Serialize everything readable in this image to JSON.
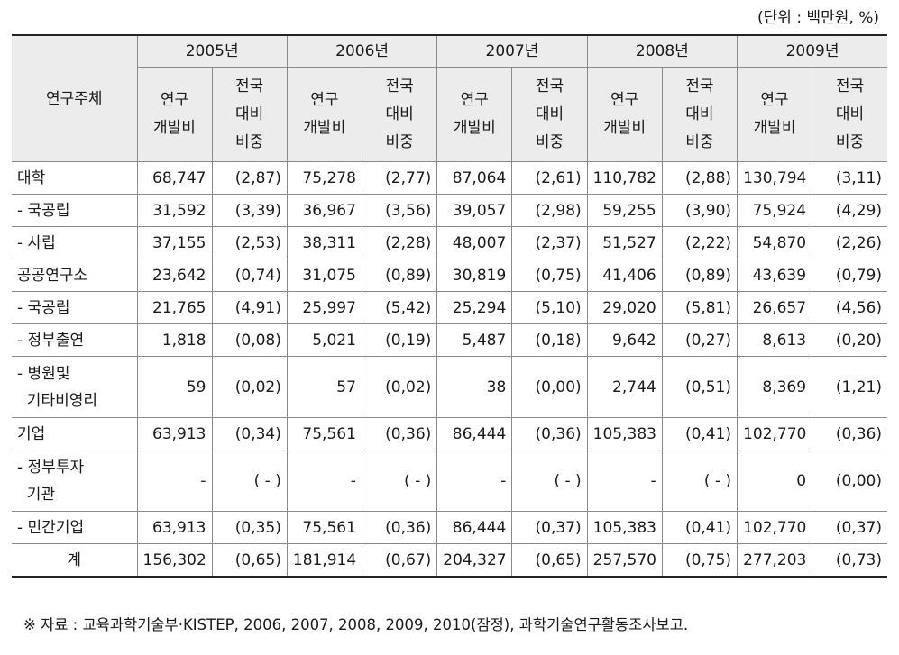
{
  "unit_note": "(단위 : 백만원, %)",
  "row_header": "연구주체",
  "years": [
    "2005년",
    "2006년",
    "2007년",
    "2008년",
    "2009년"
  ],
  "sub_headers": {
    "rd_lines": [
      "연구",
      "개발비"
    ],
    "ratio_lines": [
      "전국",
      "대비",
      "비중"
    ]
  },
  "rows": [
    {
      "name": "대학",
      "cells": [
        "68,747",
        "(2,87)",
        "75,278",
        "(2,77)",
        "87,064",
        "(2,61)",
        "110,782",
        "(2,88)",
        "130,794",
        "(3,11)"
      ]
    },
    {
      "name": "- 국공립",
      "cells": [
        "31,592",
        "(3,39)",
        "36,967",
        "(3,56)",
        "39,057",
        "(2,98)",
        "59,255",
        "(3,90)",
        "75,924",
        "(4,29)"
      ]
    },
    {
      "name": "- 사립",
      "cells": [
        "37,155",
        "(2,53)",
        "38,311",
        "(2,28)",
        "48,007",
        "(2,37)",
        "51,527",
        "(2,22)",
        "54,870",
        "(2,26)"
      ]
    },
    {
      "name": "공공연구소",
      "cells": [
        "23,642",
        "(0,74)",
        "31,075",
        "(0,89)",
        "30,819",
        "(0,75)",
        "41,406",
        "(0,89)",
        "43,639",
        "(0,79)"
      ]
    },
    {
      "name": "- 국공립",
      "cells": [
        "21,765",
        "(4,91)",
        "25,997",
        "(5,42)",
        "25,294",
        "(5,10)",
        "29,020",
        "(5,81)",
        "26,657",
        "(4,56)"
      ]
    },
    {
      "name": "- 정부출연",
      "cells": [
        "1,818",
        "(0,08)",
        "5,021",
        "(0,19)",
        "5,487",
        "(0,18)",
        "9,642",
        "(0,27)",
        "8,613",
        "(0,20)"
      ]
    },
    {
      "name_lines": [
        "- 병원및",
        "  기타비영리"
      ],
      "cells": [
        "59",
        "(0,02)",
        "57",
        "(0,02)",
        "38",
        "(0,00)",
        "2,744",
        "(0,51)",
        "8,369",
        "(1,21)"
      ]
    },
    {
      "name": "기업",
      "cells": [
        "63,913",
        "(0,34)",
        "75,561",
        "(0,36)",
        "86,444",
        "(0,36)",
        "105,383",
        "(0,41)",
        "102,770",
        "(0,36)"
      ]
    },
    {
      "name_lines": [
        "- 정부투자",
        "  기관"
      ],
      "cells": [
        "-",
        "( - )",
        "-",
        "( - )",
        "-",
        "( - )",
        "-",
        "( - )",
        "0",
        "(0,00)"
      ]
    },
    {
      "name": "- 민간기업",
      "cells": [
        "63,913",
        "(0,35)",
        "75,561",
        "(0,36)",
        "86,444",
        "(0,37)",
        "105,383",
        "(0,41)",
        "102,770",
        "(0,37)"
      ]
    },
    {
      "name": "계",
      "total": true,
      "cells": [
        "156,302",
        "(0,65)",
        "181,914",
        "(0,67)",
        "204,327",
        "(0,65)",
        "257,570",
        "(0,75)",
        "277,203",
        "(0,73)"
      ]
    }
  ],
  "source_note": "※ 자료 : 교육과학기술부·KISTEP, 2006, 2007, 2008, 2009, 2010(잠정), 과학기술연구활동조사보고."
}
